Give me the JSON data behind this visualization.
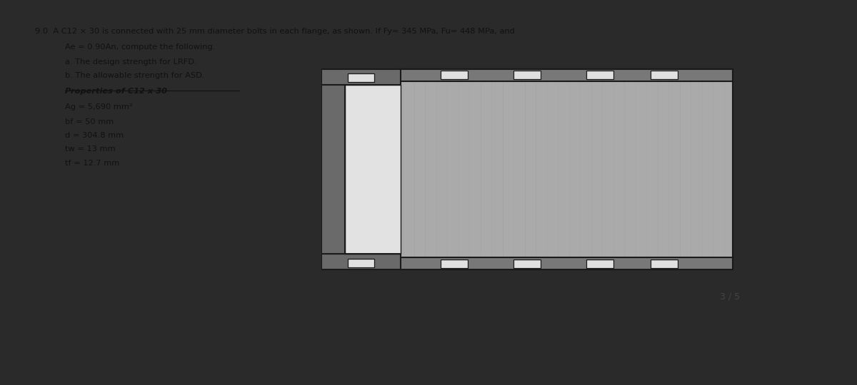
{
  "bg_color": "#ffffff",
  "title_line": "9.0  A C12 × 30 is connected with 25 mm diameter bolts in each flange, as shown. If Fy= 345 MPa, Fu= 448 MPa, and",
  "line2": "Ae = 0.90An, compute the following.",
  "line3": "a. The design strength for LRFD.",
  "line4": "b. The allowable strength for ASD.",
  "prop_title": "Properties of C12 x 30",
  "prop1": "Ag = 5,690 mm²",
  "prop2": "bf = 50 mm",
  "prop3": "d = 304.8 mm",
  "prop4": "tw = 13 mm",
  "prop5": "tf = 12.7 mm",
  "page_indicator": "3 / 5",
  "outer_bg": "#2a2a2a",
  "text_color": "#111111"
}
